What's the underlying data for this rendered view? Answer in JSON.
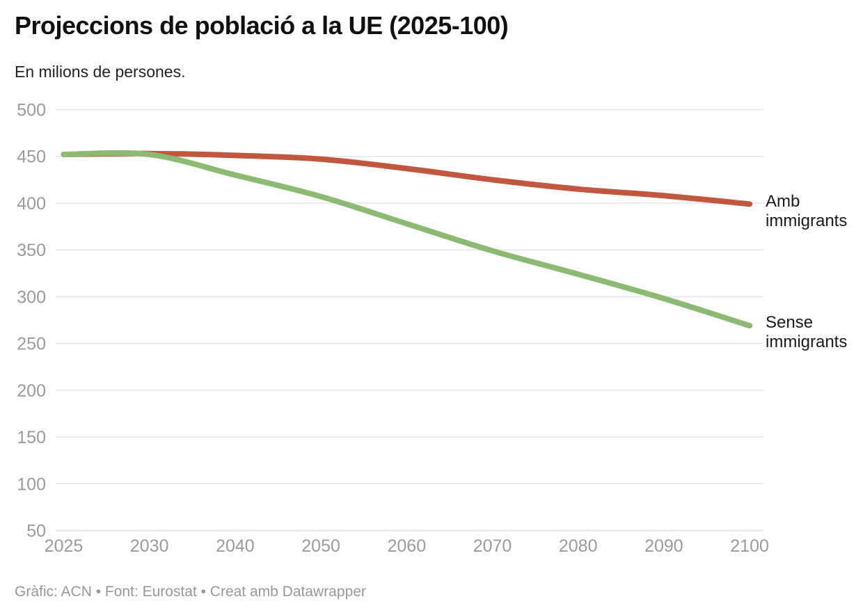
{
  "header": {
    "title": "Projeccions de població a la UE (2025-100)",
    "subtitle": "En milions de persones."
  },
  "footer": {
    "credit": "Gràfic: ACN • Font: Eurostat • Creat amb Datawrapper"
  },
  "style": {
    "axis_label_color": "#9a9a9a",
    "grid_color": "#e6e6e6",
    "title_color": "#101010",
    "footer_color": "#979797",
    "series_label_color": "#1a1a1a",
    "background": "#ffffff"
  },
  "chart_data": {
    "type": "line",
    "title": "Projeccions de població a la UE (2025-100)",
    "subtitle": "En milions de persones.",
    "xlabel": "",
    "ylabel": "",
    "categories": [
      "2025",
      "2030",
      "2040",
      "2050",
      "2060",
      "2070",
      "2080",
      "2090",
      "2100"
    ],
    "y_ticks": [
      50,
      100,
      150,
      200,
      250,
      300,
      350,
      400,
      450,
      500
    ],
    "ylim": [
      50,
      500
    ],
    "grid": "horizontal",
    "legend_position": "right-of-line-ends",
    "line_width": 8,
    "series": [
      {
        "name": "Amb immigrants",
        "color": "#c0573e",
        "values": [
          452,
          453,
          451,
          447,
          437,
          425,
          415,
          408,
          399
        ]
      },
      {
        "name": "Sense immigrants",
        "color": "#8bbb73",
        "values": [
          452,
          452,
          430,
          407,
          378,
          349,
          324,
          298,
          269
        ]
      }
    ]
  }
}
